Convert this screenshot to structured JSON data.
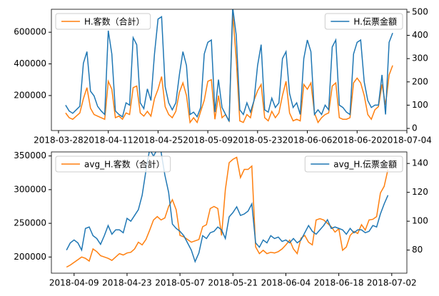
{
  "chart_data": [
    {
      "type": "line",
      "x": [
        "2018-03-30",
        "2018-03-31",
        "2018-04-01",
        "2018-04-02",
        "2018-04-03",
        "2018-04-04",
        "2018-04-05",
        "2018-04-06",
        "2018-04-07",
        "2018-04-08",
        "2018-04-09",
        "2018-04-10",
        "2018-04-11",
        "2018-04-12",
        "2018-04-13",
        "2018-04-14",
        "2018-04-15",
        "2018-04-16",
        "2018-04-17",
        "2018-04-18",
        "2018-04-19",
        "2018-04-20",
        "2018-04-21",
        "2018-04-22",
        "2018-04-23",
        "2018-04-24",
        "2018-04-25",
        "2018-04-26",
        "2018-04-27",
        "2018-04-28",
        "2018-04-29",
        "2018-04-30",
        "2018-05-01",
        "2018-05-02",
        "2018-05-03",
        "2018-05-04",
        "2018-05-05",
        "2018-05-06",
        "2018-05-07",
        "2018-05-08",
        "2018-05-09",
        "2018-05-10",
        "2018-05-11",
        "2018-05-12",
        "2018-05-13",
        "2018-05-14",
        "2018-05-15",
        "2018-05-16",
        "2018-05-17",
        "2018-05-18",
        "2018-05-19",
        "2018-05-20",
        "2018-05-21",
        "2018-05-22",
        "2018-05-23",
        "2018-05-24",
        "2018-05-25",
        "2018-05-26",
        "2018-05-27",
        "2018-05-28",
        "2018-05-29",
        "2018-05-30",
        "2018-05-31",
        "2018-06-01",
        "2018-06-02",
        "2018-06-03",
        "2018-06-04",
        "2018-06-05",
        "2018-06-06",
        "2018-06-07",
        "2018-06-08",
        "2018-06-09",
        "2018-06-10",
        "2018-06-11",
        "2018-06-12",
        "2018-06-13",
        "2018-06-14",
        "2018-06-15",
        "2018-06-16",
        "2018-06-17",
        "2018-06-18",
        "2018-06-19",
        "2018-06-20",
        "2018-06-21",
        "2018-06-22",
        "2018-06-23",
        "2018-06-24",
        "2018-06-25",
        "2018-06-26",
        "2018-06-27",
        "2018-06-28",
        "2018-06-29",
        "2018-06-30"
      ],
      "xlim": [
        "2018-03-26",
        "2018-07-04"
      ],
      "xticks": [
        "2018-03-28",
        "2018-04-11",
        "2018-04-25",
        "2018-05-09",
        "2018-05-23",
        "2018-06-06",
        "2018-06-20",
        "2018-07-04"
      ],
      "ylim": [
        -21000,
        745000
      ],
      "yticks": [
        200000,
        400000,
        600000
      ],
      "y2lim": [
        -9,
        512
      ],
      "y2ticks": [
        0,
        100,
        200,
        300,
        400,
        500
      ],
      "legend_y": "upper left",
      "legend_y2": "upper right",
      "series": [
        {
          "name": "H.客数（合計）",
          "color": "#ff7f0e",
          "axis": "y",
          "values": [
            90000,
            60000,
            50000,
            70000,
            90000,
            180000,
            250000,
            120000,
            80000,
            70000,
            60000,
            50000,
            290000,
            240000,
            60000,
            70000,
            50000,
            90000,
            80000,
            250000,
            260000,
            90000,
            70000,
            100000,
            70000,
            180000,
            240000,
            320000,
            130000,
            80000,
            60000,
            100000,
            220000,
            280000,
            200000,
            30000,
            60000,
            30000,
            100000,
            170000,
            290000,
            300000,
            50000,
            200000,
            60000,
            80000,
            40000,
            720000,
            430000,
            40000,
            30000,
            80000,
            60000,
            170000,
            230000,
            270000,
            60000,
            40000,
            100000,
            60000,
            90000,
            200000,
            290000,
            90000,
            40000,
            50000,
            40000,
            270000,
            240000,
            280000,
            90000,
            30000,
            60000,
            80000,
            90000,
            260000,
            280000,
            60000,
            50000,
            50000,
            60000,
            280000,
            310000,
            280000,
            200000,
            80000,
            50000,
            110000,
            130000,
            270000,
            140000,
            330000,
            390000
          ]
        },
        {
          "name": "H.伝票金額",
          "color": "#1f77b4",
          "axis": "y2",
          "values": [
            100,
            75,
            65,
            80,
            95,
            280,
            330,
            160,
            140,
            95,
            75,
            60,
            420,
            320,
            75,
            60,
            50,
            110,
            100,
            390,
            360,
            110,
            85,
            170,
            120,
            320,
            470,
            480,
            180,
            110,
            80,
            110,
            230,
            330,
            270,
            60,
            70,
            50,
            90,
            320,
            370,
            380,
            70,
            210,
            90,
            60,
            30,
            520,
            400,
            80,
            60,
            110,
            70,
            120,
            270,
            360,
            80,
            70,
            130,
            90,
            110,
            300,
            330,
            150,
            90,
            110,
            60,
            300,
            380,
            330,
            60,
            80,
            60,
            100,
            80,
            350,
            380,
            100,
            90,
            70,
            60,
            320,
            370,
            380,
            200,
            120,
            90,
            100,
            100,
            230,
            60,
            370,
            410
          ]
        }
      ]
    },
    {
      "type": "line",
      "x": [
        "2018-04-07",
        "2018-04-08",
        "2018-04-09",
        "2018-04-10",
        "2018-04-11",
        "2018-04-12",
        "2018-04-13",
        "2018-04-14",
        "2018-04-15",
        "2018-04-16",
        "2018-04-17",
        "2018-04-18",
        "2018-04-19",
        "2018-04-20",
        "2018-04-21",
        "2018-04-22",
        "2018-04-23",
        "2018-04-24",
        "2018-04-25",
        "2018-04-26",
        "2018-04-27",
        "2018-04-28",
        "2018-04-29",
        "2018-04-30",
        "2018-05-01",
        "2018-05-02",
        "2018-05-03",
        "2018-05-04",
        "2018-05-05",
        "2018-05-06",
        "2018-05-07",
        "2018-05-08",
        "2018-05-09",
        "2018-05-10",
        "2018-05-11",
        "2018-05-12",
        "2018-05-13",
        "2018-05-14",
        "2018-05-15",
        "2018-05-16",
        "2018-05-17",
        "2018-05-18",
        "2018-05-19",
        "2018-05-20",
        "2018-05-21",
        "2018-05-22",
        "2018-05-23",
        "2018-05-24",
        "2018-05-25",
        "2018-05-26",
        "2018-05-27",
        "2018-05-28",
        "2018-05-29",
        "2018-05-30",
        "2018-05-31",
        "2018-06-01",
        "2018-06-02",
        "2018-06-03",
        "2018-06-04",
        "2018-06-05",
        "2018-06-06",
        "2018-06-07",
        "2018-06-08",
        "2018-06-09",
        "2018-06-10",
        "2018-06-11",
        "2018-06-12",
        "2018-06-13",
        "2018-06-14",
        "2018-06-15",
        "2018-06-16",
        "2018-06-17",
        "2018-06-18",
        "2018-06-19",
        "2018-06-20",
        "2018-06-21",
        "2018-06-22",
        "2018-06-23",
        "2018-06-24",
        "2018-06-25",
        "2018-06-26",
        "2018-06-27",
        "2018-06-28",
        "2018-06-29",
        "2018-06-30",
        "2018-07-01"
      ],
      "xlim": [
        "2018-04-03",
        "2018-07-06"
      ],
      "xticks": [
        "2018-04-09",
        "2018-04-23",
        "2018-05-07",
        "2018-05-21",
        "2018-06-04",
        "2018-06-18",
        "2018-07-02"
      ],
      "ylim": [
        176000,
        356000
      ],
      "yticks": [
        200000,
        250000,
        300000,
        350000
      ],
      "y2lim": [
        64,
        148
      ],
      "y2ticks": [
        80,
        100,
        120,
        140
      ],
      "legend_y": "upper left",
      "legend_y2": "upper right",
      "series": [
        {
          "name": "avg_H.客数（合計）",
          "color": "#ff7f0e",
          "axis": "y",
          "values": [
            185000,
            188000,
            192000,
            196000,
            200000,
            198000,
            194000,
            212000,
            208000,
            202000,
            200000,
            198000,
            195000,
            200000,
            205000,
            203000,
            206000,
            207000,
            212000,
            222000,
            218000,
            226000,
            240000,
            255000,
            260000,
            255000,
            258000,
            275000,
            285000,
            270000,
            232000,
            230000,
            226000,
            222000,
            224000,
            226000,
            245000,
            248000,
            272000,
            275000,
            272000,
            232000,
            300000,
            340000,
            345000,
            348000,
            318000,
            330000,
            330000,
            335000,
            215000,
            205000,
            210000,
            205000,
            207000,
            206000,
            208000,
            212000,
            218000,
            225000,
            212000,
            205000,
            228000,
            232000,
            222000,
            218000,
            255000,
            257000,
            255000,
            250000,
            245000,
            237000,
            242000,
            210000,
            215000,
            232000,
            238000,
            235000,
            248000,
            240000,
            255000,
            256000,
            260000,
            295000,
            305000,
            330000
          ]
        },
        {
          "name": "avg_H.伝票金額",
          "color": "#1f77b4",
          "axis": "y2",
          "values": [
            80,
            85,
            87,
            85,
            80,
            95,
            96,
            90,
            88,
            84,
            90,
            97,
            91,
            94,
            94,
            92,
            102,
            100,
            104,
            108,
            118,
            135,
            150,
            145,
            150,
            148,
            132,
            120,
            98,
            95,
            93,
            90,
            85,
            80,
            72,
            78,
            90,
            88,
            92,
            93,
            96,
            94,
            88,
            103,
            106,
            110,
            104,
            105,
            107,
            112,
            85,
            82,
            87,
            85,
            90,
            88,
            89,
            86,
            87,
            85,
            88,
            85,
            87,
            92,
            97,
            93,
            91,
            94,
            97,
            101,
            95,
            96,
            95,
            94,
            91,
            95,
            92,
            94,
            94,
            92,
            93,
            97,
            96,
            105,
            112,
            118
          ]
        }
      ]
    }
  ]
}
